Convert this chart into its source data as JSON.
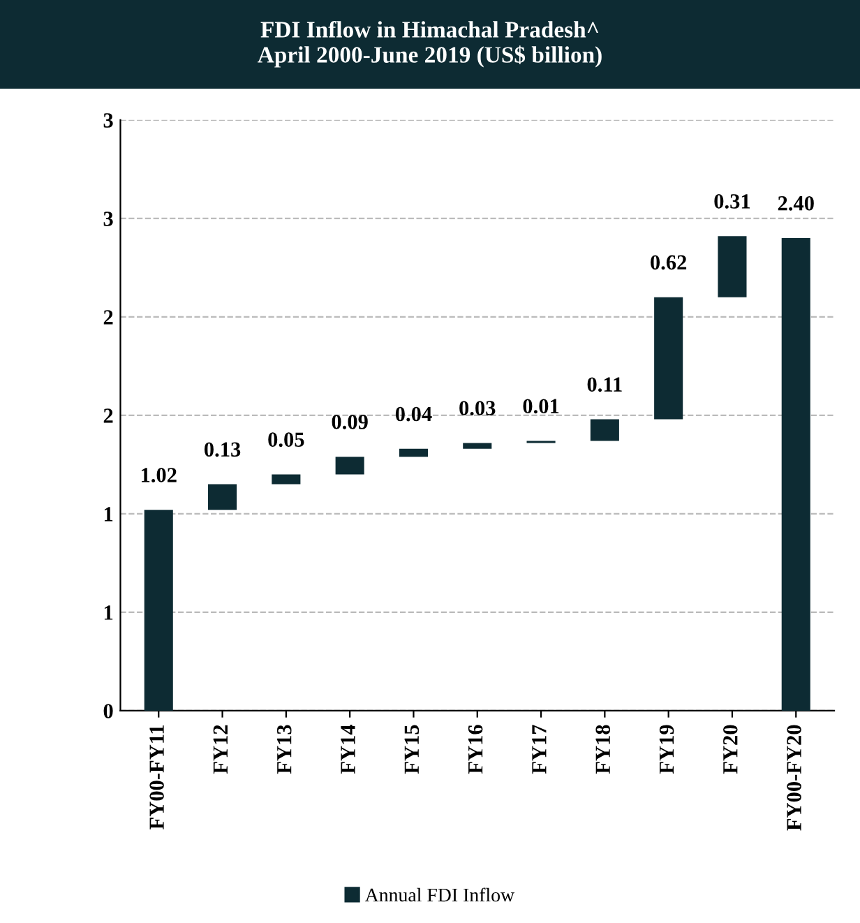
{
  "chart_data": {
    "type": "bar",
    "title": "FDI Inflow in Himachal Pradesh^\nApril 2000-June 2019 (US$ billion)",
    "categories": [
      "FY00-FY11",
      "FY12",
      "FY13",
      "FY14",
      "FY15",
      "FY16",
      "FY17",
      "FY18",
      "FY19",
      "FY20",
      "FY00-FY20"
    ],
    "series": [
      {
        "name": "Annual FDI Inflow",
        "color": "#0d2b33",
        "values": [
          1.02,
          0.13,
          0.05,
          0.09,
          0.04,
          0.03,
          0.01,
          0.11,
          0.62,
          0.31,
          2.4
        ],
        "base": [
          0,
          1.02,
          1.15,
          1.2,
          1.29,
          1.33,
          1.36,
          1.37,
          1.48,
          2.1,
          0
        ],
        "value_labels": [
          "1.02",
          "0.13",
          "0.05",
          "0.09",
          "0.04",
          "0.03",
          "0.01",
          "0.11",
          "0.62",
          "0.31",
          "2.40"
        ]
      }
    ],
    "ylim": [
      0,
      3
    ],
    "yticks": [
      0,
      {
        "value": 0.5,
        "label": "1"
      },
      1,
      {
        "value": 1.5,
        "label": "2"
      },
      2,
      {
        "value": 2.5,
        "label": "3"
      },
      3
    ],
    "grid": "y",
    "legend": "bottom"
  }
}
